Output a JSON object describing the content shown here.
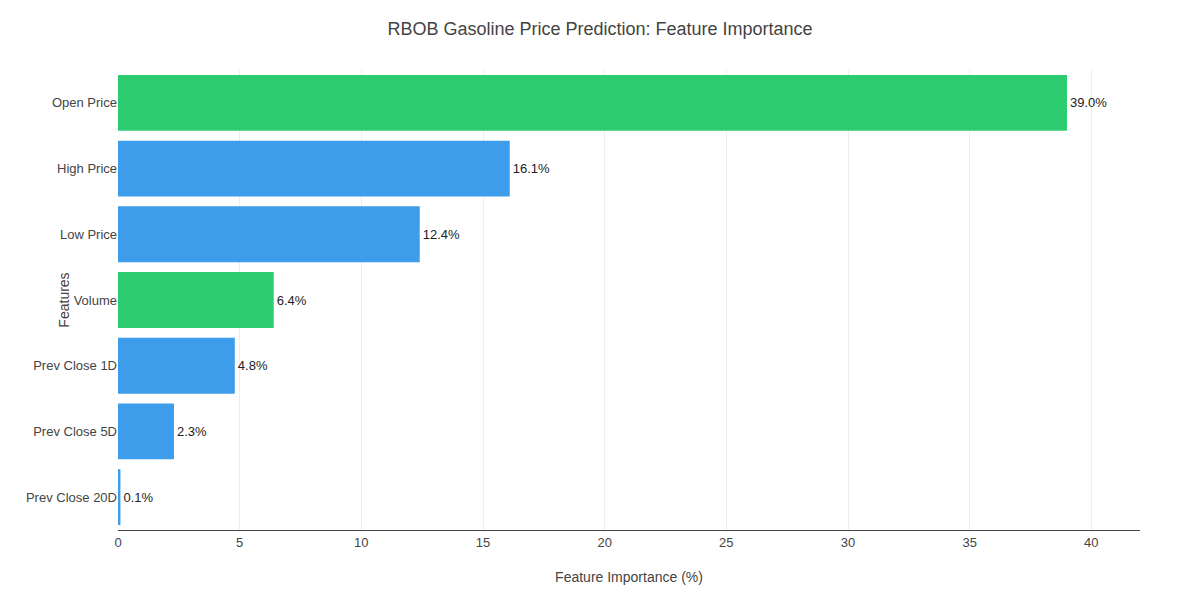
{
  "chart_data": {
    "type": "bar",
    "orientation": "horizontal",
    "title": "RBOB Gasoline Price Prediction: Feature Importance",
    "xlabel": "Feature Importance (%)",
    "ylabel": "Features",
    "categories": [
      "Prev Close 20D",
      "Prev Close 5D",
      "Prev Close 1D",
      "Volume",
      "Low Price",
      "High Price",
      "Open Price"
    ],
    "values": [
      0.1,
      2.3,
      4.8,
      6.4,
      12.4,
      16.1,
      39.0
    ],
    "value_labels": [
      "0.1%",
      "2.3%",
      "4.8%",
      "6.4%",
      "12.4%",
      "16.1%",
      "39.0%"
    ],
    "colors": [
      "#3d9dea",
      "#3d9dea",
      "#3d9dea",
      "#2ecc71",
      "#3d9dea",
      "#3d9dea",
      "#2ecc71"
    ],
    "data_labels": true,
    "xlim": [
      0,
      42
    ],
    "xticks": [
      0,
      5,
      10,
      15,
      20,
      25,
      30,
      35,
      40
    ],
    "grid": true
  }
}
